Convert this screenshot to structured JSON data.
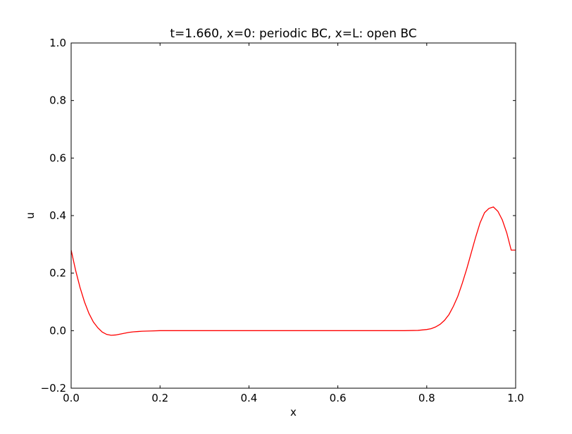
{
  "chart_data": {
    "type": "line",
    "title": "t=1.660, x=0: periodic BC, x=L: open BC",
    "xlabel": "x",
    "ylabel": "u",
    "xlim": [
      0.0,
      1.0
    ],
    "ylim": [
      -0.2,
      1.0
    ],
    "xticks": [
      0.0,
      0.2,
      0.4,
      0.6,
      0.8,
      1.0
    ],
    "xtick_labels": [
      "0.0",
      "0.2",
      "0.4",
      "0.6",
      "0.8",
      "1.0"
    ],
    "yticks": [
      -0.2,
      0.0,
      0.2,
      0.4,
      0.6,
      0.8,
      1.0
    ],
    "ytick_labels": [
      "−0.2",
      "0.0",
      "0.2",
      "0.4",
      "0.6",
      "0.8",
      "1.0"
    ],
    "grid": false,
    "series": [
      {
        "color": "#ff0000",
        "x": [
          0.0,
          0.01,
          0.02,
          0.03,
          0.04,
          0.05,
          0.06,
          0.07,
          0.08,
          0.09,
          0.1,
          0.11,
          0.12,
          0.13,
          0.14,
          0.15,
          0.16,
          0.18,
          0.2,
          0.25,
          0.3,
          0.4,
          0.5,
          0.6,
          0.7,
          0.75,
          0.78,
          0.8,
          0.81,
          0.82,
          0.83,
          0.84,
          0.85,
          0.86,
          0.87,
          0.88,
          0.89,
          0.9,
          0.91,
          0.92,
          0.93,
          0.94,
          0.95,
          0.96,
          0.97,
          0.98,
          0.99,
          1.0
        ],
        "y": [
          0.28,
          0.21,
          0.15,
          0.1,
          0.06,
          0.03,
          0.01,
          -0.005,
          -0.013,
          -0.016,
          -0.015,
          -0.012,
          -0.009,
          -0.006,
          -0.004,
          -0.003,
          -0.002,
          -0.001,
          0.0,
          0.0,
          0.0,
          0.0,
          0.0,
          0.0,
          0.0,
          0.0,
          0.001,
          0.004,
          0.007,
          0.013,
          0.022,
          0.036,
          0.056,
          0.085,
          0.12,
          0.165,
          0.215,
          0.27,
          0.325,
          0.375,
          0.41,
          0.425,
          0.43,
          0.415,
          0.385,
          0.34,
          0.28,
          0.28
        ]
      }
    ]
  }
}
